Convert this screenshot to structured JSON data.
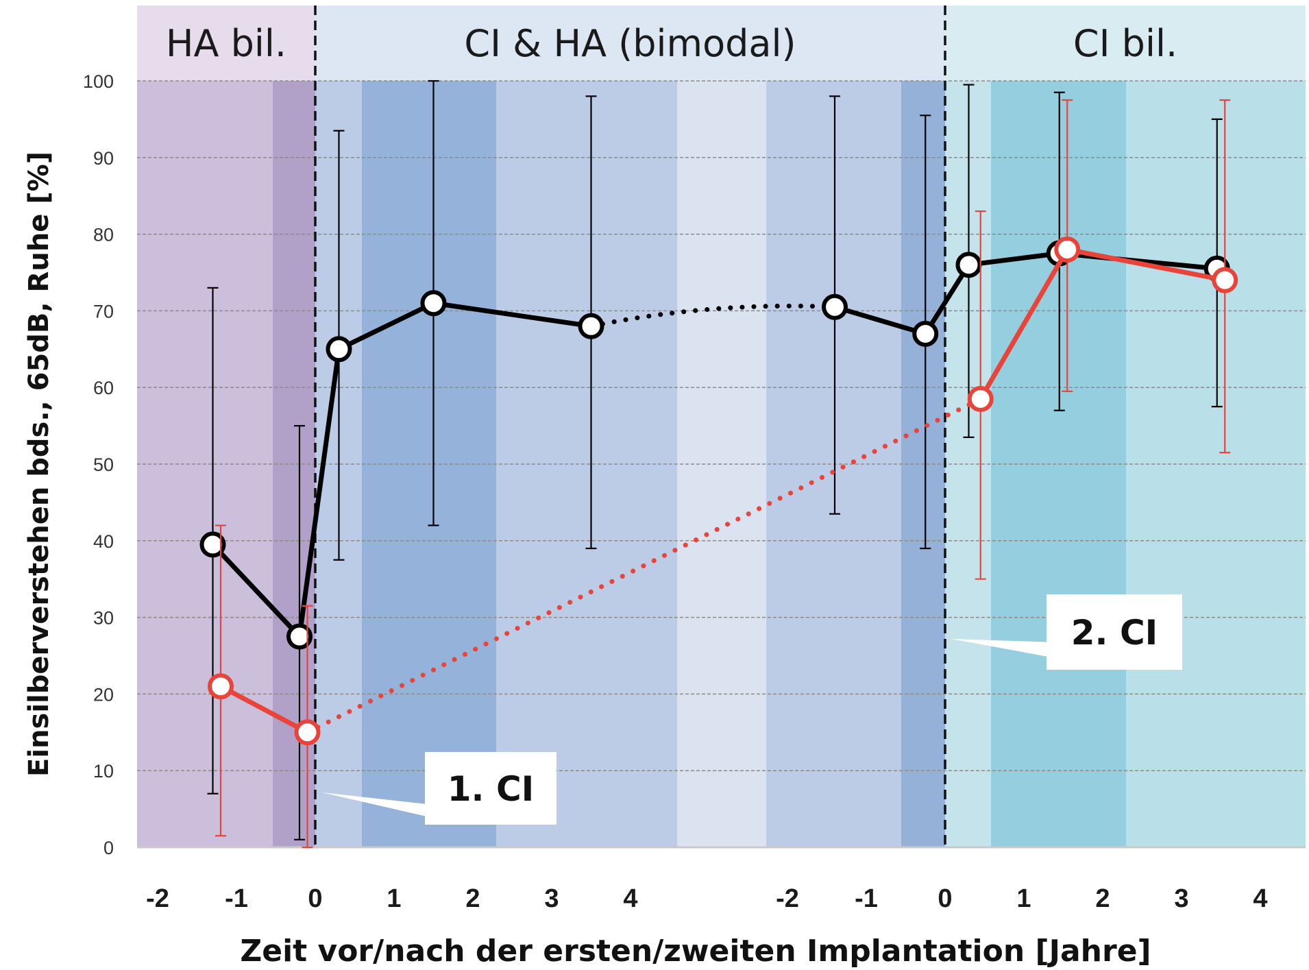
{
  "chart_data": {
    "type": "line",
    "ylabel": "Einsilberverstehen bds., 65dB, Ruhe [%]",
    "xlabel": "Zeit vor/nach der ersten/zweiten Implantation [Jahre]",
    "ylim": [
      0,
      100
    ],
    "y_ticks": [
      "0",
      "10",
      "20",
      "30",
      "40",
      "50",
      "60",
      "70",
      "80",
      "90",
      "100"
    ],
    "grid": true,
    "phases": [
      {
        "label": "HA bil.",
        "color": "#e6dcec"
      },
      {
        "label": "CI & HA (bimodal)",
        "color": "#dde6f3"
      },
      {
        "label": "CI bil.",
        "color": "#d9ecf2"
      }
    ],
    "x_axis_segments": [
      {
        "reference": "1. CI",
        "ticks": [
          "-2",
          "-1",
          "0",
          "1",
          "2",
          "3",
          "4"
        ]
      },
      {
        "reference": "2. CI",
        "ticks": [
          "-2",
          "-1",
          "0",
          "1",
          "2",
          "3",
          "4"
        ]
      }
    ],
    "annotations": [
      "1. CI",
      "2. CI"
    ],
    "series": [
      {
        "color": "#000000",
        "points": [
          {
            "segment": 0,
            "x": -1.3,
            "y": 39.5,
            "err_low": 7,
            "err_high": 73
          },
          {
            "segment": 0,
            "x": -0.2,
            "y": 27.5,
            "err_low": 1,
            "err_high": 55
          },
          {
            "segment": 0,
            "x": 0.3,
            "y": 65,
            "err_low": 37.5,
            "err_high": 93.5
          },
          {
            "segment": 0,
            "x": 1.5,
            "y": 71,
            "err_low": 42,
            "err_high": 100
          },
          {
            "segment": 0,
            "x": 3.5,
            "y": 68,
            "err_low": 39,
            "err_high": 98
          },
          {
            "segment": 1,
            "x": -1.4,
            "y": 70.5,
            "err_low": 43.5,
            "err_high": 98
          },
          {
            "segment": 1,
            "x": -0.25,
            "y": 67,
            "err_low": 39,
            "err_high": 95.5
          },
          {
            "segment": 1,
            "x": 0.3,
            "y": 76,
            "err_low": 53.5,
            "err_high": 99.5
          },
          {
            "segment": 1,
            "x": 1.45,
            "y": 77.5,
            "err_low": 57,
            "err_high": 98.5
          },
          {
            "segment": 1,
            "x": 3.45,
            "y": 75.5,
            "err_low": 57.5,
            "err_high": 95
          }
        ],
        "dotted_gaps": [
          [
            4,
            5
          ]
        ]
      },
      {
        "color": "#e8443a",
        "points": [
          {
            "segment": 0,
            "x": -1.2,
            "y": 21,
            "err_low": 1.5,
            "err_high": 42
          },
          {
            "segment": 0,
            "x": -0.1,
            "y": 15,
            "err_low": 0,
            "err_high": 31.5
          },
          {
            "segment": 1,
            "x": 0.45,
            "y": 58.5,
            "err_low": 35,
            "err_high": 83
          },
          {
            "segment": 1,
            "x": 1.55,
            "y": 78,
            "err_low": 59.5,
            "err_high": 97.5
          },
          {
            "segment": 1,
            "x": 3.55,
            "y": 74,
            "err_low": 51.5,
            "err_high": 97.5
          }
        ],
        "dotted_gaps": [
          [
            1,
            2
          ]
        ]
      }
    ]
  }
}
